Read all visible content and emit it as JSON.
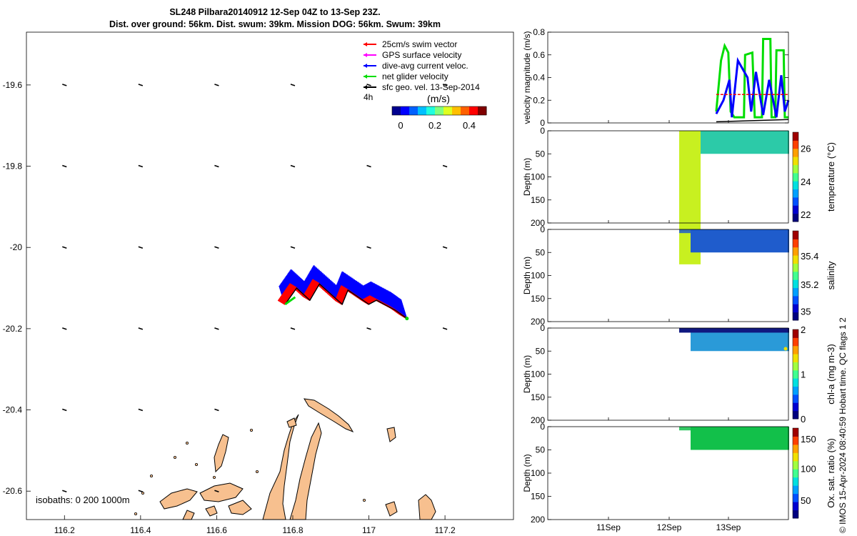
{
  "title_line1": "SL248 Pilbara20140912 12-Sep 04Z to 13-Sep 23Z.",
  "title_line2": "Dist. over ground: 56km. Dist. swum: 39km. Mission DOG: 56km. Swum: 39km",
  "credit": "© IMOS 15-Apr-2024 08:40:59 Hobart time. QC flags 1  2",
  "colors": {
    "swim": "#ff0000",
    "gps": "#ff00ff",
    "current": "#0000ff",
    "net": "#00dd00",
    "geo": "#000000",
    "land": "#f7c08f"
  },
  "chart_data": [
    {
      "type": "map",
      "x_ticks": [
        "116.2",
        "116.4",
        "116.6",
        "116.8",
        "117",
        "117.2"
      ],
      "y_ticks": [
        "-19.6",
        "-19.8",
        "-20",
        "-20.2",
        "-20.4",
        "-20.6"
      ],
      "xlim": [
        116.1,
        117.38
      ],
      "ylim": [
        -20.67,
        -19.47
      ],
      "legend": [
        {
          "label": "25cm/s swim vector",
          "color": "#ff0000"
        },
        {
          "label": "GPS surface velocity",
          "color": "#ff00ff"
        },
        {
          "label": "dive-avg current veloc.",
          "color": "#0000ff"
        },
        {
          "label": "net glider velocity",
          "color": "#00dd00"
        },
        {
          "label": "sfc geo. vel. 13-Sep-2014",
          "color": "#000000"
        }
      ],
      "legend_note": "4h",
      "colorbar": {
        "label": "(m/s)",
        "ticks": [
          "0",
          "0.2",
          "0.4"
        ],
        "range": [
          -0.05,
          0.5
        ]
      },
      "isobaths_label": "isobaths: 0   200  1000m",
      "track": [
        {
          "lon": 116.78,
          "lat": -20.14
        },
        {
          "lon": 116.81,
          "lat": -20.1
        },
        {
          "lon": 116.845,
          "lat": -20.13
        },
        {
          "lon": 116.87,
          "lat": -20.09
        },
        {
          "lon": 116.93,
          "lat": -20.14
        },
        {
          "lon": 116.945,
          "lat": -20.105
        },
        {
          "lon": 117.0,
          "lat": -20.14
        },
        {
          "lon": 117.02,
          "lat": -20.13
        },
        {
          "lon": 117.07,
          "lat": -20.155
        },
        {
          "lon": 117.1,
          "lat": -20.175
        }
      ]
    },
    {
      "type": "line",
      "ylabel": "velocity magnitude (m/s)",
      "ylim": [
        0,
        0.8
      ],
      "y_ticks": [
        "0",
        "0.2",
        "0.4",
        "0.6",
        "0.8"
      ],
      "xlim": [
        0,
        10
      ],
      "series": [
        {
          "color": "#00dd00",
          "values": [
            [
              7.0,
              0.1
            ],
            [
              7.2,
              0.55
            ],
            [
              7.35,
              0.68
            ],
            [
              7.5,
              0.62
            ],
            [
              7.6,
              0.1
            ],
            [
              7.75,
              0.05
            ],
            [
              8.15,
              0.05
            ],
            [
              8.2,
              0.6
            ],
            [
              8.5,
              0.62
            ],
            [
              8.6,
              0.05
            ],
            [
              8.9,
              0.05
            ],
            [
              8.95,
              0.74
            ],
            [
              9.25,
              0.74
            ],
            [
              9.3,
              0.05
            ],
            [
              9.45,
              0.05
            ],
            [
              9.5,
              0.64
            ],
            [
              9.8,
              0.64
            ],
            [
              9.85,
              0.05
            ],
            [
              10.0,
              0.05
            ]
          ]
        },
        {
          "color": "#0000ff",
          "values": [
            [
              7.0,
              0.08
            ],
            [
              7.3,
              0.2
            ],
            [
              7.55,
              0.38
            ],
            [
              7.65,
              0.05
            ],
            [
              7.9,
              0.55
            ],
            [
              8.3,
              0.4
            ],
            [
              8.45,
              0.1
            ],
            [
              8.65,
              0.45
            ],
            [
              8.95,
              0.07
            ],
            [
              9.2,
              0.38
            ],
            [
              9.5,
              0.05
            ],
            [
              9.7,
              0.42
            ],
            [
              9.85,
              0.1
            ],
            [
              10.0,
              0.2
            ]
          ]
        },
        {
          "color": "#ff0000",
          "values": [
            [
              7.0,
              0.25
            ],
            [
              10.0,
              0.25
            ]
          ]
        },
        {
          "color": "#000000",
          "values": [
            [
              7.0,
              0.01
            ],
            [
              10.0,
              0.03
            ]
          ]
        }
      ]
    },
    {
      "type": "heatmap",
      "ylabel": "Depth (m)",
      "clabel": "temperature (°C)",
      "ylim": [
        0,
        200
      ],
      "y_ticks": [
        "0",
        "50",
        "100",
        "150",
        "200"
      ],
      "cticks": [
        {
          "label": "22",
          "frac": 0.08
        },
        {
          "label": "24",
          "frac": 0.45
        },
        {
          "label": "26",
          "frac": 0.82
        }
      ],
      "data_color": "#2ccaa8"
    },
    {
      "type": "heatmap",
      "ylabel": "Depth (m)",
      "clabel": "salinity",
      "ylim": [
        0,
        200
      ],
      "y_ticks": [
        "0",
        "50",
        "100",
        "150",
        "200"
      ],
      "cticks": [
        {
          "label": "35",
          "frac": 0.1
        },
        {
          "label": "35.2",
          "frac": 0.4
        },
        {
          "label": "35.4",
          "frac": 0.72
        }
      ],
      "data_color": "#1f5ccc"
    },
    {
      "type": "heatmap",
      "ylabel": "Depth (m)",
      "clabel": "chl-a (mg m-3)",
      "ylim": [
        0,
        200
      ],
      "y_ticks": [
        "0",
        "50",
        "100",
        "150",
        "200"
      ],
      "cticks": [
        {
          "label": "0",
          "frac": 0.0
        },
        {
          "label": "1",
          "frac": 0.5
        },
        {
          "label": "2",
          "frac": 1.0
        }
      ],
      "data_color": "#2a9ad8"
    },
    {
      "type": "heatmap",
      "ylabel": "Depth (m)",
      "clabel": "Ox. sat. ratio (%)",
      "ylim": [
        0,
        200
      ],
      "y_ticks": [
        "0",
        "50",
        "100",
        "150",
        "200"
      ],
      "cticks": [
        {
          "label": "50",
          "frac": 0.2
        },
        {
          "label": "100",
          "frac": 0.55
        },
        {
          "label": "150",
          "frac": 0.88
        }
      ],
      "data_color": "#12c04a",
      "x_ticks": [
        "11Sep",
        "12Sep",
        "13Sep"
      ]
    }
  ]
}
